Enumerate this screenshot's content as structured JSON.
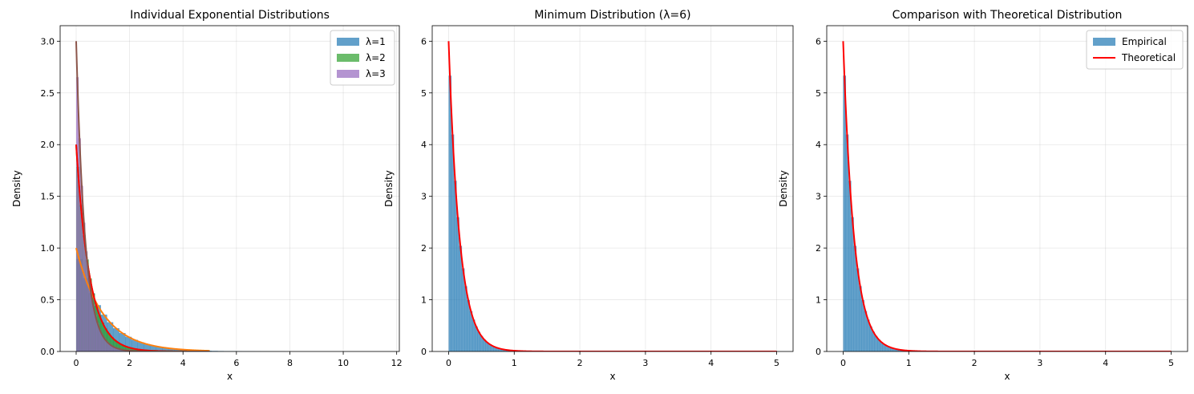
{
  "chart_data": [
    {
      "type": "histogram",
      "title": "Individual Exponential Distributions",
      "xlabel": "x",
      "ylabel": "Density",
      "xlim": [
        -0.6,
        12.1
      ],
      "ylim": [
        0,
        3.15
      ],
      "xticks": [
        "0",
        "2",
        "4",
        "6",
        "8",
        "10",
        "12"
      ],
      "yticks": [
        "0.0",
        "0.5",
        "1.0",
        "1.5",
        "2.0",
        "2.5",
        "3.0"
      ],
      "grid": true,
      "legend": {
        "position": "top-right",
        "entries": [
          "λ=1",
          "λ=2",
          "λ=3"
        ]
      },
      "histograms": [
        {
          "name": "λ=1",
          "color": "#1f77b4",
          "opacity": 0.7,
          "rate": 1,
          "x_max": 11.5,
          "bins": 50
        },
        {
          "name": "λ=2",
          "color": "#2ca02c",
          "opacity": 0.7,
          "rate": 2,
          "x_max": 5.8,
          "bins": 50
        },
        {
          "name": "λ=3",
          "color": "#9467bd",
          "opacity": 0.7,
          "rate": 3,
          "x_max": 4.2,
          "bins": 50
        }
      ],
      "curves": [
        {
          "color": "#ff7f0e",
          "rate": 1,
          "x": [
            0,
            5
          ]
        },
        {
          "color": "#2ca02c",
          "rate": 2,
          "x": [
            0,
            5
          ]
        },
        {
          "color": "#ff0000",
          "rate": 2,
          "x": [
            0,
            5
          ]
        },
        {
          "color": "#8c564b",
          "rate": 3,
          "x": [
            0,
            5
          ]
        }
      ]
    },
    {
      "type": "histogram",
      "title": "Minimum Distribution (λ=6)",
      "xlabel": "x",
      "ylabel": "Density",
      "xlim": [
        -0.25,
        5.25
      ],
      "ylim": [
        0,
        6.3
      ],
      "xticks": [
        "0",
        "1",
        "2",
        "3",
        "4",
        "5"
      ],
      "yticks": [
        "0",
        "1",
        "2",
        "3",
        "4",
        "5",
        "6"
      ],
      "grid": true,
      "histograms": [
        {
          "color": "#1f77b4",
          "opacity": 0.7,
          "rate": 6,
          "x_max": 2.0,
          "bins": 50
        }
      ],
      "curves": [
        {
          "color": "#ff0000",
          "rate": 6,
          "x": [
            0,
            5
          ]
        }
      ]
    },
    {
      "type": "histogram",
      "title": "Comparison with Theoretical Distribution",
      "xlabel": "x",
      "ylabel": "Density",
      "xlim": [
        -0.25,
        5.25
      ],
      "ylim": [
        0,
        6.3
      ],
      "xticks": [
        "0",
        "1",
        "2",
        "3",
        "4",
        "5"
      ],
      "yticks": [
        "0",
        "1",
        "2",
        "3",
        "4",
        "5",
        "6"
      ],
      "grid": true,
      "legend": {
        "position": "top-right",
        "entries": [
          "Empirical",
          "Theoretical"
        ]
      },
      "histograms": [
        {
          "name": "Empirical",
          "color": "#1f77b4",
          "opacity": 0.7,
          "rate": 6,
          "x_max": 2.0,
          "bins": 50
        }
      ],
      "curves": [
        {
          "name": "Theoretical",
          "color": "#ff0000",
          "rate": 6,
          "x": [
            0,
            5
          ]
        }
      ]
    }
  ]
}
